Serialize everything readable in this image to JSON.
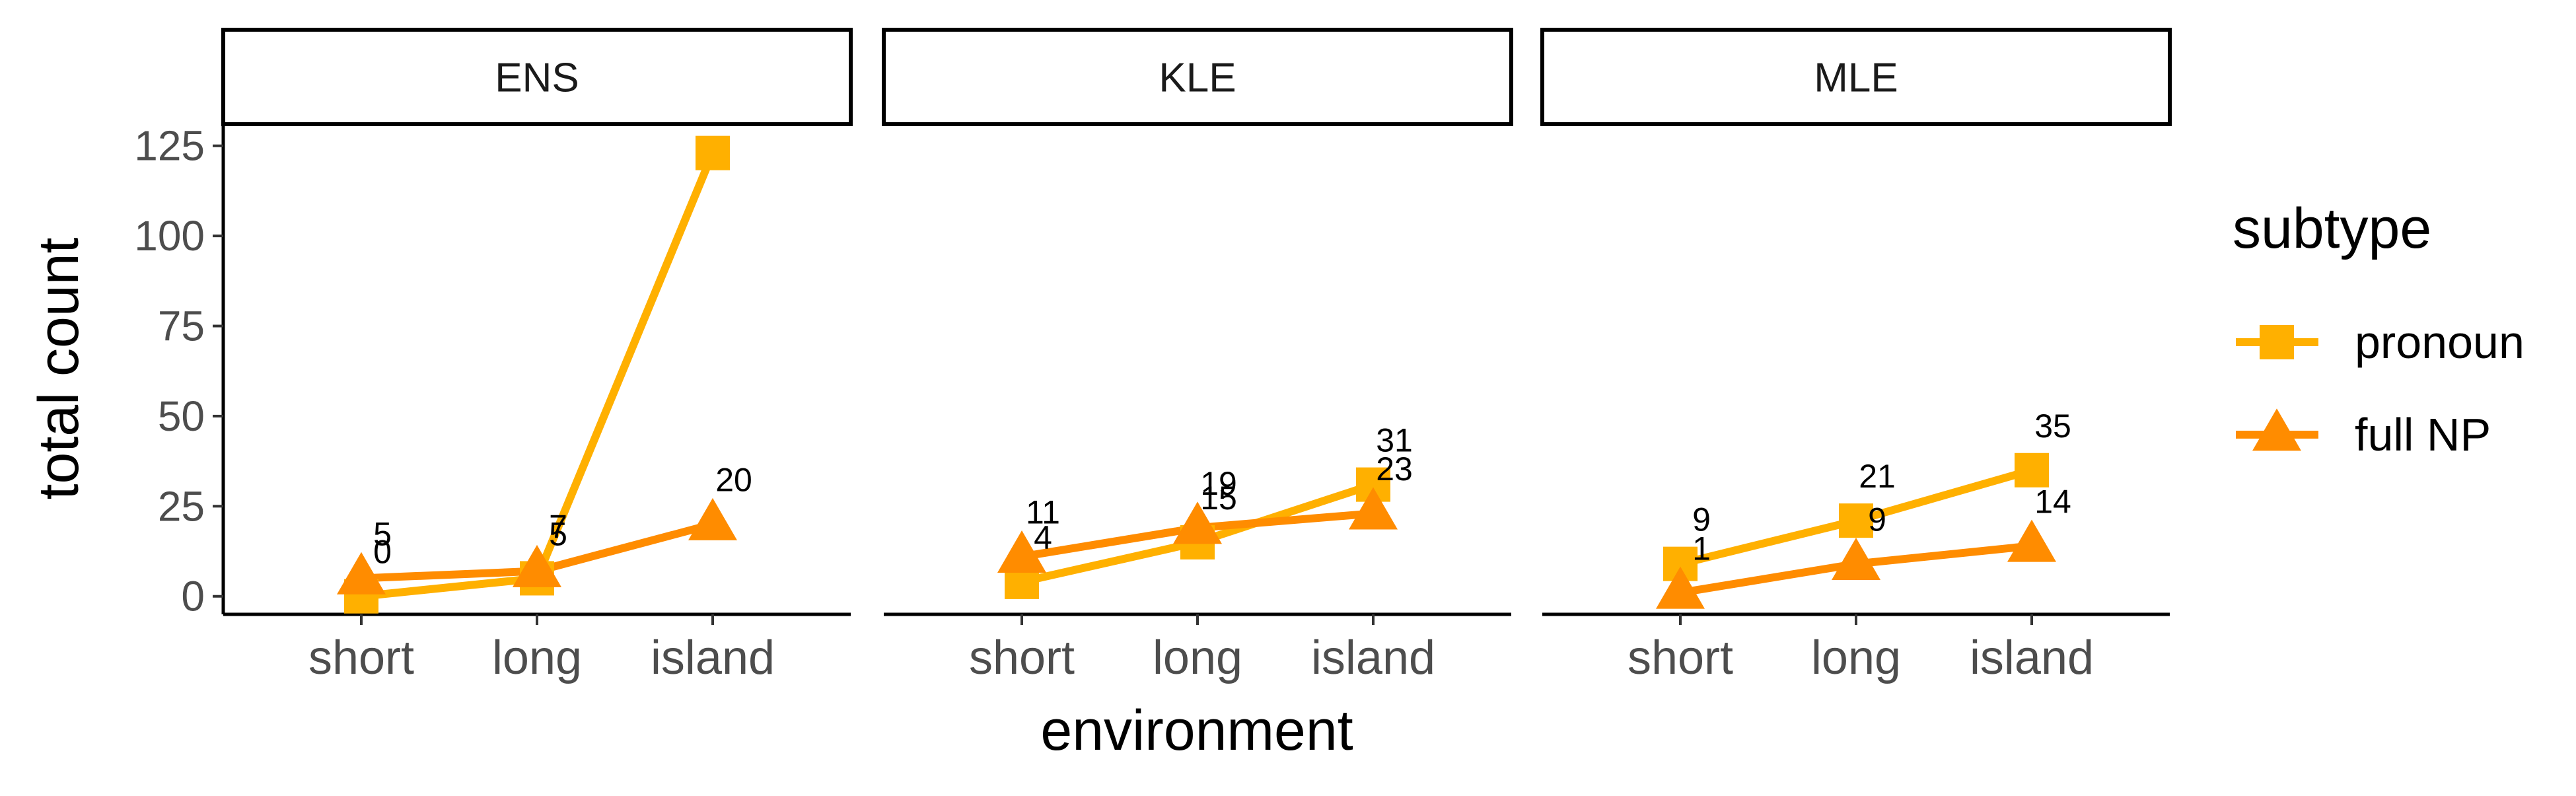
{
  "chart_data": {
    "type": "line",
    "facet_by": "panel",
    "panels": [
      "ENS",
      "KLE",
      "MLE"
    ],
    "categories": [
      "short",
      "long",
      "island"
    ],
    "xlabel": "environment",
    "ylabel": "total count",
    "ylim": [
      -5,
      131
    ],
    "yticks": [
      0,
      25,
      50,
      75,
      100,
      125
    ],
    "grid": false,
    "legend": {
      "title": "subtype",
      "position": "right",
      "entries": [
        {
          "name": "pronoun",
          "marker": "square",
          "color": "#FFB000"
        },
        {
          "name": "full NP",
          "marker": "triangle",
          "color": "#FF8C00"
        }
      ]
    },
    "series": [
      {
        "name": "pronoun",
        "panel": "ENS",
        "values": [
          0,
          5,
          123
        ],
        "labels": [
          "0",
          "5",
          ""
        ]
      },
      {
        "name": "full NP",
        "panel": "ENS",
        "values": [
          5,
          7,
          20
        ],
        "labels": [
          "5",
          "7",
          "20"
        ]
      },
      {
        "name": "pronoun",
        "panel": "KLE",
        "values": [
          4,
          15,
          31
        ],
        "labels": [
          "4",
          "15",
          "31"
        ]
      },
      {
        "name": "full NP",
        "panel": "KLE",
        "values": [
          11,
          19,
          23
        ],
        "labels": [
          "11",
          "19",
          "23"
        ]
      },
      {
        "name": "pronoun",
        "panel": "MLE",
        "values": [
          9,
          21,
          35
        ],
        "labels": [
          "9",
          "21",
          "35"
        ]
      },
      {
        "name": "full NP",
        "panel": "MLE",
        "values": [
          1,
          9,
          14
        ],
        "labels": [
          "1",
          "9",
          "14"
        ]
      }
    ]
  }
}
